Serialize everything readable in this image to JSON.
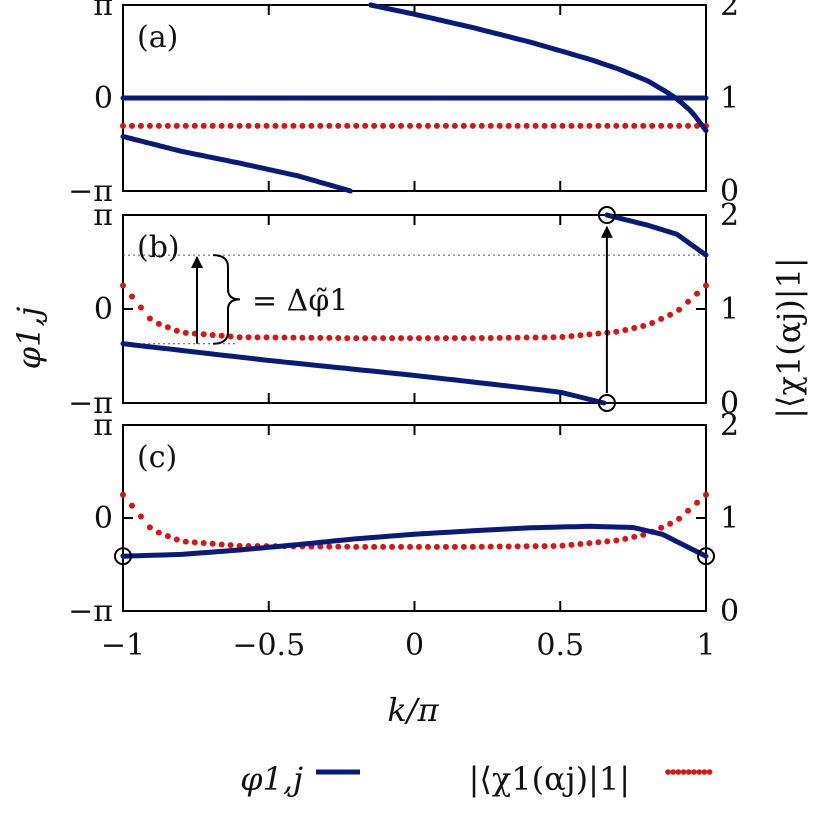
{
  "chart_data": {
    "type": "scatter",
    "xlabel": "k/π",
    "x_ticks": [
      "−1",
      "−0.5",
      "0",
      "0.5",
      "1"
    ],
    "xlim": [
      -1,
      1
    ],
    "left_ylabel": "φ1,j",
    "left_ticks": [
      "π",
      "0",
      "−π"
    ],
    "left_ylim": [
      -3.14159,
      3.14159
    ],
    "right_ylabel": "|⟨χ1(αj)|1|",
    "right_ticks": [
      "2",
      "1",
      "0"
    ],
    "right_ylim": [
      0,
      2
    ],
    "colors": {
      "phase": "#0a1a7a",
      "overlap": "#d81414"
    },
    "legend": [
      {
        "label": "φ1,j",
        "style": "solid",
        "color": "#0a1a7a"
      },
      {
        "label": "|⟨χ1(αj)|1|",
        "style": "dotted",
        "color": "#d81414"
      }
    ],
    "panels": [
      {
        "label": "(a)",
        "phase_branches": [
          [
            [
              -0.15,
              3.14
            ],
            [
              0.0,
              2.83
            ],
            [
              0.2,
              2.38
            ],
            [
              0.4,
              1.88
            ],
            [
              0.6,
              1.31
            ],
            [
              0.7,
              0.98
            ],
            [
              0.8,
              0.58
            ],
            [
              0.86,
              0.23
            ],
            [
              0.9,
              -0.03
            ],
            [
              0.95,
              -0.45
            ],
            [
              1.0,
              -1.1
            ]
          ],
          [
            [
              -1.0,
              0.0
            ],
            [
              1.0,
              0.0
            ]
          ],
          [
            [
              -1.0,
              -1.3
            ],
            [
              -0.8,
              -1.8
            ],
            [
              -0.6,
              -2.2
            ],
            [
              -0.4,
              -2.63
            ],
            [
              -0.22,
              -3.14
            ]
          ]
        ],
        "overlap_points": [
          [
            -1.0,
            0.7
          ],
          [
            1.0,
            0.7
          ]
        ],
        "markers": []
      },
      {
        "label": "(b)",
        "phase_branches": [
          [
            [
              -1.0,
              -1.16
            ],
            [
              -0.5,
              -1.72
            ],
            [
              0.0,
              -2.22
            ],
            [
              0.3,
              -2.55
            ],
            [
              0.5,
              -2.78
            ],
            [
              0.65,
              -3.14
            ]
          ],
          [
            [
              0.66,
              3.14
            ],
            [
              0.8,
              2.8
            ],
            [
              0.9,
              2.5
            ],
            [
              1.0,
              1.8
            ]
          ]
        ],
        "overlap_points": [
          [
            -1.0,
            1.25
          ],
          [
            -0.9,
            0.87
          ],
          [
            -0.8,
            0.75
          ],
          [
            -0.6,
            0.7
          ],
          [
            -0.2,
            0.69
          ],
          [
            0.2,
            0.69
          ],
          [
            0.5,
            0.7
          ],
          [
            0.7,
            0.76
          ],
          [
            0.8,
            0.83
          ],
          [
            0.9,
            0.97
          ],
          [
            1.0,
            1.25
          ]
        ],
        "markers": [
          [
            0.66,
            -3.14
          ],
          [
            0.66,
            3.14
          ]
        ],
        "annotation": "= Δφ̃1"
      },
      {
        "label": "(c)",
        "phase_branches": [
          [
            [
              -1.0,
              -1.29
            ],
            [
              -0.8,
              -1.23
            ],
            [
              -0.6,
              -1.08
            ],
            [
              -0.4,
              -0.9
            ],
            [
              -0.2,
              -0.7
            ],
            [
              0.0,
              -0.55
            ],
            [
              0.2,
              -0.43
            ],
            [
              0.4,
              -0.33
            ],
            [
              0.6,
              -0.28
            ],
            [
              0.75,
              -0.32
            ],
            [
              0.85,
              -0.55
            ],
            [
              1.0,
              -1.29
            ]
          ]
        ],
        "overlap_points": [
          [
            -1.0,
            1.25
          ],
          [
            -0.9,
            0.87
          ],
          [
            -0.8,
            0.75
          ],
          [
            -0.6,
            0.7
          ],
          [
            -0.2,
            0.69
          ],
          [
            0.2,
            0.69
          ],
          [
            0.5,
            0.7
          ],
          [
            0.7,
            0.76
          ],
          [
            0.8,
            0.83
          ],
          [
            0.9,
            0.97
          ],
          [
            1.0,
            1.25
          ]
        ],
        "markers": [
          [
            -1.0,
            -1.29
          ],
          [
            1.0,
            -1.29
          ]
        ]
      }
    ]
  }
}
